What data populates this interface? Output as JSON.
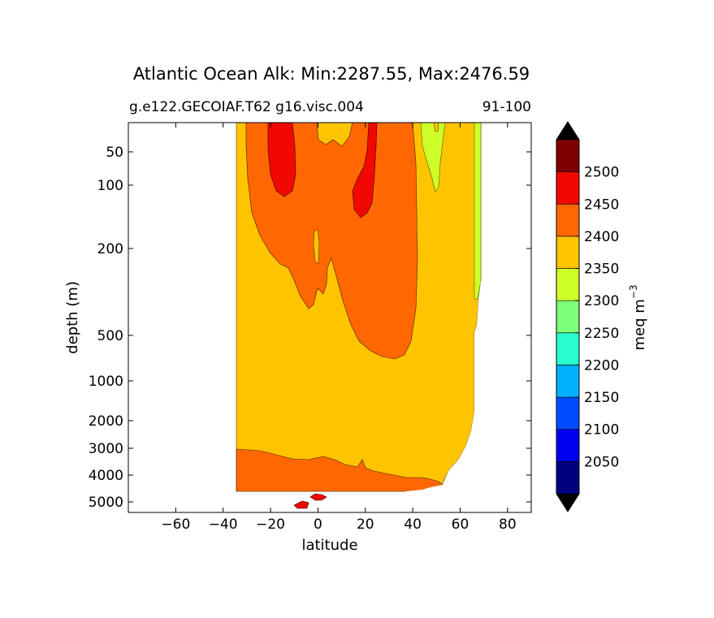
{
  "chart_data": {
    "type": "heatmap",
    "title": "Atlantic Ocean Alk: Min:2287.55, Max:2476.59",
    "subtitle_left": "g.e122.GECOIAF.T62 g16.visc.004",
    "subtitle_right": "91-100",
    "xlabel": "latitude",
    "ylabel": "depth (m)",
    "xlim": [
      -80,
      90
    ],
    "x_ticks": [
      -60,
      -40,
      -20,
      0,
      20,
      40,
      60,
      80
    ],
    "x_tick_labels": [
      "−60",
      "−40",
      "−20",
      "0",
      "20",
      "40",
      "60",
      "80"
    ],
    "y_scale": "piecewise (log-like, depth increasing downward)",
    "y_tick_labels": [
      "50",
      "100",
      "200",
      "500",
      "1000",
      "2000",
      "3000",
      "4000",
      "5000"
    ],
    "colorbar": {
      "label": "meq m",
      "label_exponent": "−3",
      "levels": [
        2000,
        2050,
        2100,
        2150,
        2200,
        2250,
        2300,
        2350,
        2400,
        2450,
        2500,
        2550
      ],
      "tick_labels": [
        "2050",
        "2100",
        "2150",
        "2200",
        "2250",
        "2300",
        "2350",
        "2400",
        "2450",
        "2500"
      ],
      "colors": [
        "#000080",
        "#0000f1",
        "#004dff",
        "#00b1ff",
        "#29ffce",
        "#7dff7a",
        "#ceff29",
        "#ffc400",
        "#ff6800",
        "#f10800",
        "#800000"
      ],
      "extend": "both"
    },
    "regions": [
      {
        "band": "2350-2400",
        "color": "#ffc400",
        "description": "main water column fill"
      },
      {
        "band": "2400-2450",
        "color": "#ff6800",
        "description": "upper-ocean lobe -35 to 40 latitude and deep bottom layer"
      },
      {
        "band": "2450-2500",
        "color": "#f10800",
        "description": "near-surface maxima near -20 and 20 latitude, small bottom patch near 0"
      },
      {
        "band": "2300-2350",
        "color": "#ceff29",
        "description": "northern high-latitude surface"
      }
    ]
  }
}
